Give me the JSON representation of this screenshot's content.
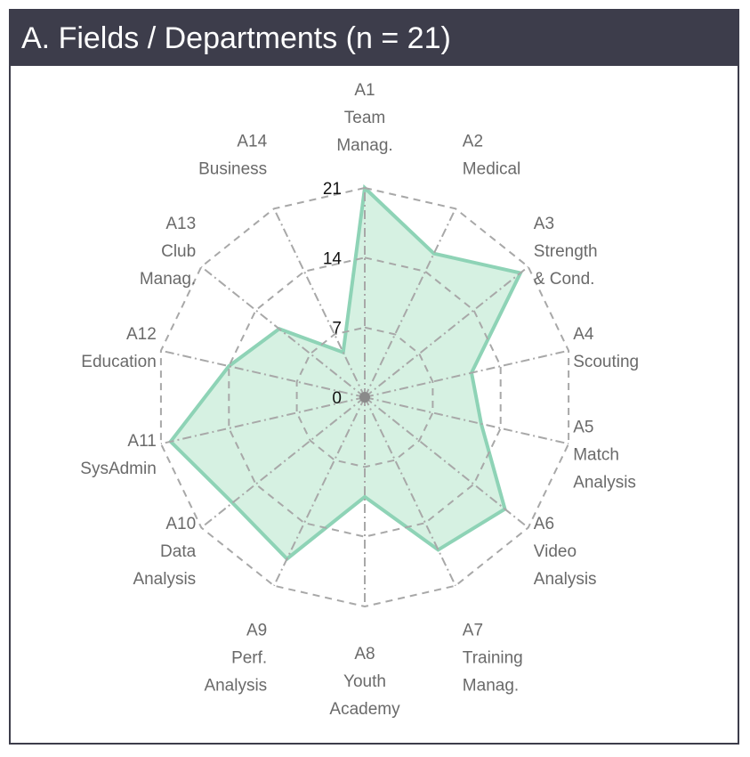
{
  "title": "A. Fields / Departments (n = 21)",
  "colors": {
    "header_bg": "#3d3d4b",
    "fill": "#cfeedd",
    "stroke": "#8ed3b6",
    "grid": "#a8a8a8",
    "label": "#6a6a6a"
  },
  "chart_data": {
    "type": "radar",
    "title": "A. Fields / Departments (n = 21)",
    "rmax": 21,
    "ticks": [
      "0",
      "7",
      "14",
      "21"
    ],
    "tick_values": [
      0,
      7,
      14,
      21
    ],
    "grid": true,
    "categories": [
      [
        "A1",
        "Team",
        "Manag."
      ],
      [
        "A2",
        "Medical"
      ],
      [
        "A3",
        "Strength",
        "& Cond."
      ],
      [
        "A4",
        "Scouting"
      ],
      [
        "A5",
        "Match",
        "Analysis"
      ],
      [
        "A6",
        "Video",
        "Analysis"
      ],
      [
        "A7",
        "Training",
        "Manag."
      ],
      [
        "A8",
        "Youth",
        "Academy"
      ],
      [
        "A9",
        "Perf.",
        "Analysis"
      ],
      [
        "A10",
        "Data",
        "Analysis"
      ],
      [
        "A11",
        "SysAdmin"
      ],
      [
        "A12",
        "Education"
      ],
      [
        "A13",
        "Club",
        "Manag."
      ],
      [
        "A14",
        "Business"
      ]
    ],
    "values": [
      21,
      16,
      20,
      11,
      12,
      18,
      17,
      10,
      18,
      17,
      20,
      14,
      11,
      5
    ]
  }
}
